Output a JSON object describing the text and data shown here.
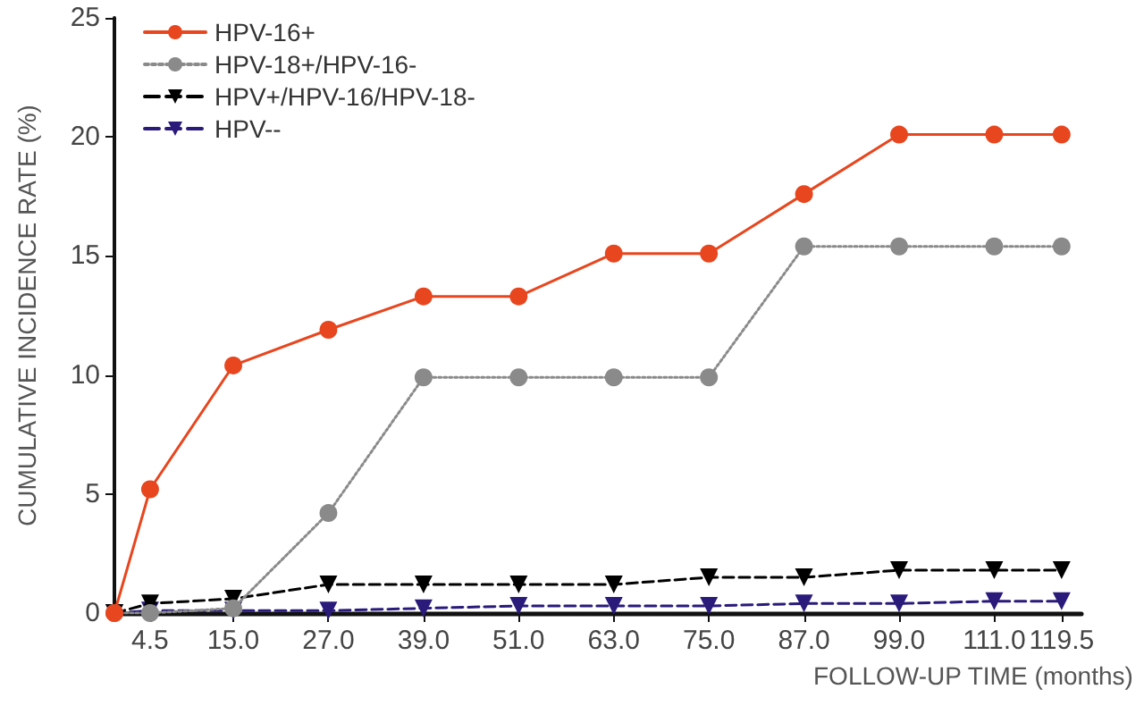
{
  "chart_data": {
    "type": "line",
    "xlabel": "FOLLOW-UP TIME (months)",
    "ylabel": "CUMULATIVE INCIDENCE RATE (%)",
    "x": [
      0,
      4.5,
      15,
      27,
      39,
      51,
      63,
      75,
      87,
      99,
      111,
      119.5
    ],
    "xlim": [
      0,
      122
    ],
    "xticks": [
      {
        "value": 4.5,
        "label": "4.5"
      },
      {
        "value": 15,
        "label": "15.0"
      },
      {
        "value": 27,
        "label": "27.0"
      },
      {
        "value": 39,
        "label": "39.0"
      },
      {
        "value": 51,
        "label": "51.0"
      },
      {
        "value": 63,
        "label": "63.0"
      },
      {
        "value": 75,
        "label": "75.0"
      },
      {
        "value": 87,
        "label": "87.0"
      },
      {
        "value": 99,
        "label": "99.0"
      },
      {
        "value": 111,
        "label": "111.0"
      },
      {
        "value": 119.5,
        "label": "119.5"
      }
    ],
    "ylim": [
      0,
      25
    ],
    "yticks": [
      0,
      5,
      10,
      15,
      20,
      25
    ],
    "grid": false,
    "legend": "top left",
    "series": [
      {
        "name": "HPV-16+",
        "color": "#e8461e",
        "marker": "circle",
        "line_style": "solid",
        "values": [
          0,
          5.2,
          10.4,
          11.9,
          13.3,
          13.3,
          15.1,
          15.1,
          17.6,
          20.1,
          20.1,
          20.1
        ]
      },
      {
        "name": "HPV-18+/HPV-16-",
        "color": "#8a8a8a",
        "marker": "circle",
        "line_style": "dotted",
        "values": [
          0,
          0,
          0.2,
          4.2,
          9.9,
          9.9,
          9.9,
          9.9,
          15.4,
          15.4,
          15.4,
          15.4
        ]
      },
      {
        "name": "HPV+/HPV-16/HPV-18-",
        "color": "#000000",
        "marker": "triangle",
        "line_style": "dashed",
        "values": [
          0,
          0.4,
          0.6,
          1.2,
          1.2,
          1.2,
          1.2,
          1.5,
          1.5,
          1.8,
          1.8,
          1.8
        ]
      },
      {
        "name": "HPV--",
        "color": "#2a1a7a",
        "marker": "triangle",
        "line_style": "dashed",
        "values": [
          0,
          0.1,
          0.1,
          0.1,
          0.2,
          0.3,
          0.3,
          0.3,
          0.4,
          0.4,
          0.5,
          0.5
        ]
      }
    ]
  }
}
